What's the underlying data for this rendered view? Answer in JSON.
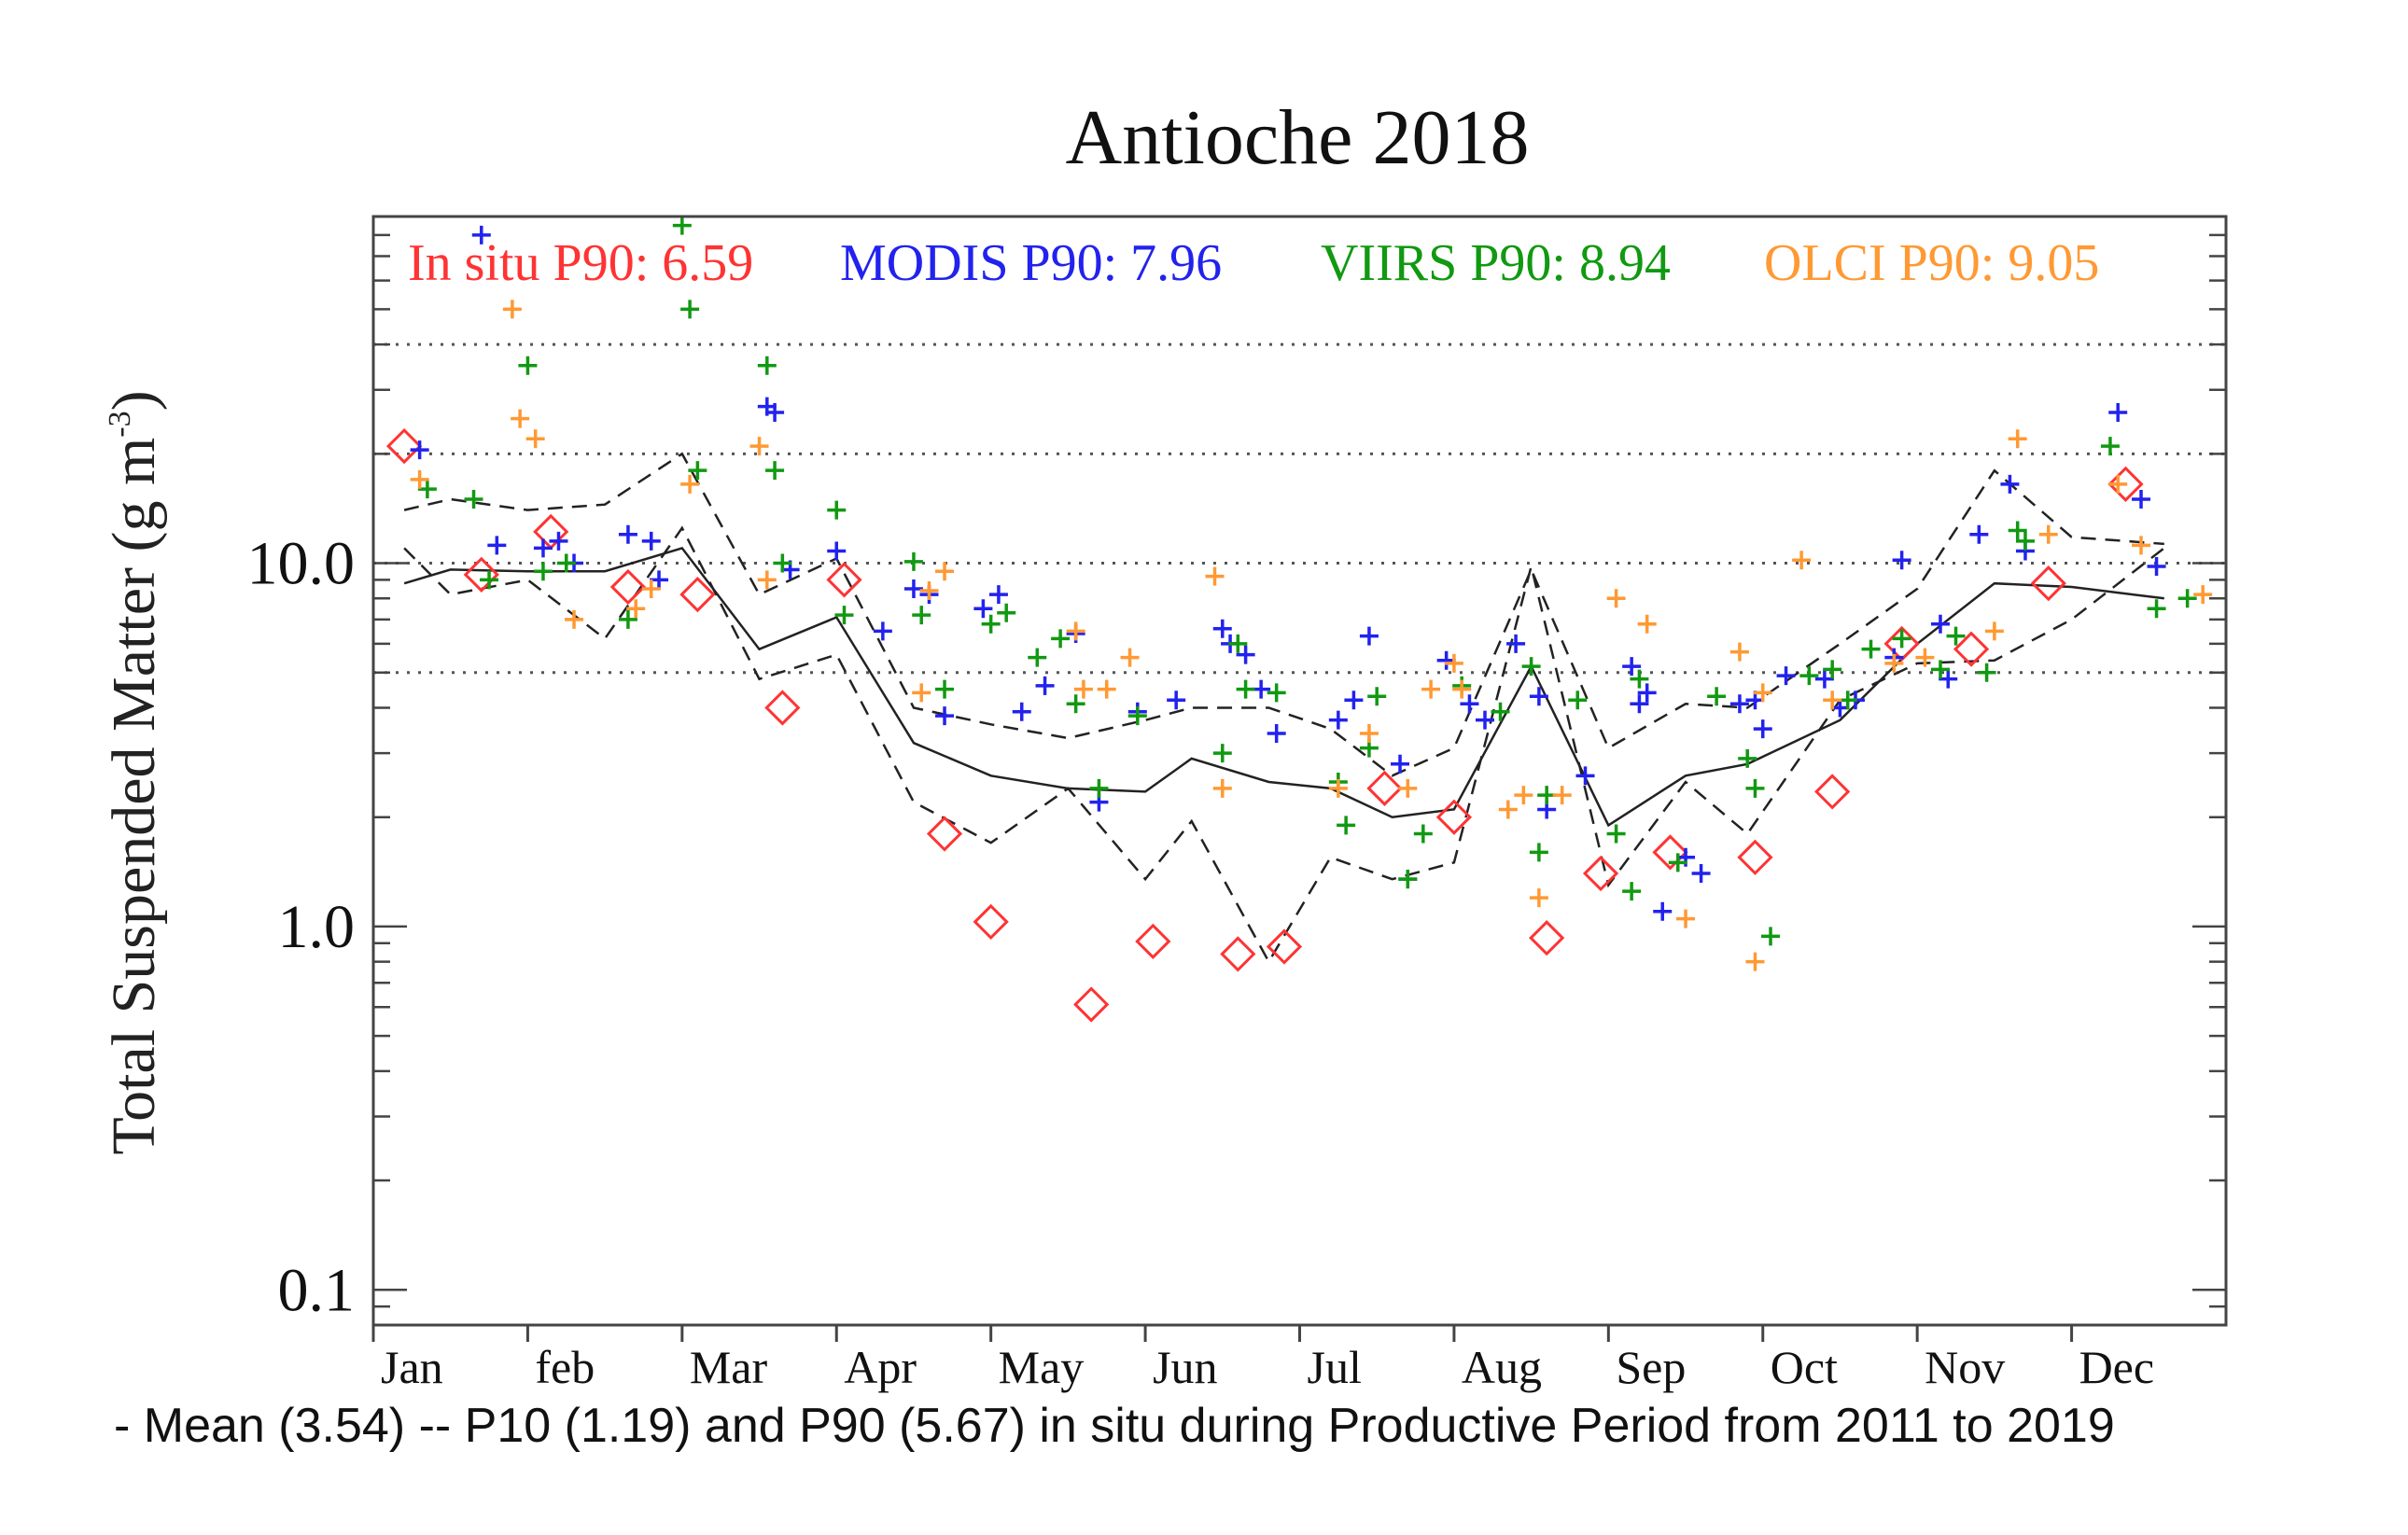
{
  "chart_data": {
    "type": "scatter",
    "title": "Antioche 2018",
    "ylabel": "Total Suspended Matter (g m",
    "ylabel_sup": "-3",
    "ylabel_close": ")",
    "xlabel": "",
    "y_scale": "log",
    "ylim": [
      0.08,
      90
    ],
    "xlim": [
      0,
      12
    ],
    "y_ticks": [
      {
        "value": 0.1,
        "label": "0.1"
      },
      {
        "value": 1.0,
        "label": "1.0"
      },
      {
        "value": 10.0,
        "label": "10.0"
      }
    ],
    "months": [
      "Jan",
      "feb",
      "Mar",
      "Apr",
      "May",
      "Jun",
      "Jul",
      "Aug",
      "Sep",
      "Oct",
      "Nov",
      "Dec"
    ],
    "ref_lines": [
      5,
      10,
      20,
      40
    ],
    "legend": [
      {
        "text": "In situ P90: 6.59",
        "color": "#ff3333"
      },
      {
        "text": "MODIS P90: 7.96",
        "color": "#2222ee"
      },
      {
        "text": "VIIRS P90: 8.94",
        "color": "#119911"
      },
      {
        "text": "OLCI P90: 9.05",
        "color": "#ff9933"
      }
    ],
    "footnote": "- Mean (3.54) -- P10 (1.19) and P90 (5.67) in situ during Productive Period from 2011 to 2019",
    "mean_line": {
      "x": [
        0.2,
        0.5,
        1.0,
        1.5,
        2.0,
        2.5,
        3.0,
        3.5,
        4.0,
        4.5,
        5.0,
        5.3,
        5.8,
        6.2,
        6.6,
        7.0,
        7.5,
        8.0,
        8.5,
        8.9,
        9.5,
        10.0,
        10.5,
        11.0,
        11.6
      ],
      "y": [
        8.8,
        9.6,
        9.5,
        9.5,
        11,
        5.8,
        7.1,
        3.2,
        2.6,
        2.4,
        2.35,
        2.9,
        2.5,
        2.4,
        2.0,
        2.1,
        5.2,
        1.9,
        2.6,
        2.8,
        3.7,
        6.0,
        8.8,
        8.6,
        8.0
      ]
    },
    "p90_line": {
      "x": [
        0.2,
        0.5,
        1.0,
        1.5,
        2.0,
        2.5,
        3.0,
        3.5,
        4.0,
        4.5,
        5.0,
        5.3,
        5.8,
        6.2,
        6.6,
        7.0,
        7.5,
        8.0,
        8.5,
        8.9,
        9.5,
        10.0,
        10.5,
        11.0,
        11.6
      ],
      "y": [
        14,
        15,
        14,
        14.5,
        20,
        8.2,
        10.3,
        4.0,
        3.6,
        3.3,
        3.7,
        4.0,
        4.0,
        3.5,
        2.6,
        3.1,
        9.6,
        3.1,
        4.1,
        4.0,
        6.0,
        8.5,
        18,
        11.8,
        11.3
      ]
    },
    "p10_line": {
      "x": [
        0.2,
        0.5,
        1.0,
        1.5,
        2.0,
        2.5,
        3.0,
        3.5,
        4.0,
        4.5,
        5.0,
        5.3,
        5.8,
        6.2,
        6.6,
        7.0,
        7.5,
        8.0,
        8.5,
        8.9,
        9.5,
        10.0,
        10.5,
        11.0,
        11.6
      ],
      "y": [
        11,
        8.2,
        9.0,
        6.2,
        12.5,
        4.8,
        5.6,
        2.2,
        1.7,
        2.4,
        1.35,
        1.95,
        0.8,
        1.55,
        1.35,
        1.5,
        9.8,
        1.3,
        2.5,
        1.8,
        4.2,
        5.3,
        5.4,
        7.0,
        11
      ]
    },
    "series": [
      {
        "name": "In situ",
        "marker": "diamond",
        "color": "#ff3333",
        "x": [
          0.2,
          0.7,
          1.15,
          1.65,
          2.1,
          2.65,
          3.05,
          3.7,
          4.0,
          4.65,
          5.05,
          5.6,
          5.9,
          6.55,
          7.0,
          7.6,
          7.95,
          8.4,
          8.95,
          9.45,
          9.9,
          10.35,
          10.85,
          11.35
        ],
        "y": [
          21,
          9.3,
          12.2,
          8.6,
          8.2,
          4.0,
          9.0,
          1.8,
          1.03,
          0.61,
          0.91,
          0.84,
          0.88,
          2.4,
          2.0,
          0.93,
          1.4,
          1.6,
          1.55,
          2.35,
          6.0,
          5.8,
          8.8,
          16.5
        ]
      },
      {
        "name": "MODIS",
        "marker": "plus",
        "color": "#2222ee",
        "x": [
          0.3,
          0.7,
          0.8,
          1.1,
          1.2,
          1.3,
          1.65,
          1.8,
          1.85,
          2.55,
          2.6,
          2.7,
          3.0,
          3.3,
          3.5,
          3.6,
          3.7,
          3.95,
          4.05,
          4.2,
          4.35,
          4.55,
          4.7,
          4.95,
          5.2,
          5.5,
          5.55,
          5.65,
          5.75,
          5.85,
          6.25,
          6.35,
          6.45,
          6.65,
          6.7,
          6.95,
          7.1,
          7.2,
          7.4,
          7.55,
          7.6,
          7.85,
          8.15,
          8.2,
          8.25,
          8.35,
          8.5,
          8.6,
          8.85,
          8.95,
          9.0,
          9.15,
          9.4,
          9.5,
          9.6,
          9.85,
          9.9,
          10.15,
          10.2,
          10.4,
          10.6,
          10.7,
          11.3,
          11.45,
          11.55
        ],
        "y": [
          20.5,
          80,
          11.2,
          11,
          11.5,
          10,
          12,
          11.5,
          9,
          27,
          26,
          9.6,
          10.8,
          6.5,
          8.5,
          8.2,
          3.8,
          7.5,
          8.2,
          3.9,
          4.6,
          6.4,
          2.2,
          3.9,
          4.2,
          6.6,
          6.0,
          5.6,
          4.5,
          3.4,
          3.7,
          4.2,
          6.3,
          2.8,
          1.35,
          5.4,
          4.1,
          3.7,
          6.0,
          4.3,
          2.1,
          2.6,
          5.2,
          4.1,
          4.4,
          1.1,
          1.55,
          1.4,
          4.1,
          4.2,
          3.5,
          4.9,
          4.8,
          4.0,
          4.2,
          5.5,
          10.2,
          6.8,
          4.8,
          12,
          16.5,
          10.8,
          26,
          15,
          9.8
        ]
      },
      {
        "name": "VIIRS",
        "marker": "plus",
        "color": "#119911",
        "x": [
          0.35,
          0.65,
          0.75,
          1.0,
          1.1,
          1.25,
          1.65,
          2.0,
          2.05,
          2.1,
          2.55,
          2.6,
          2.65,
          3.0,
          3.05,
          3.5,
          3.55,
          3.7,
          4.0,
          4.1,
          4.3,
          4.45,
          4.55,
          4.7,
          4.95,
          5.5,
          5.6,
          5.65,
          5.85,
          6.25,
          6.3,
          6.45,
          6.5,
          6.7,
          6.8,
          7.05,
          7.3,
          7.5,
          7.55,
          7.6,
          7.8,
          8.05,
          8.15,
          8.2,
          8.45,
          8.7,
          8.9,
          8.95,
          9.05,
          9.3,
          9.45,
          9.55,
          9.7,
          9.9,
          10.15,
          10.25,
          10.45,
          10.65,
          10.7,
          11.25,
          11.55,
          11.75
        ],
        "y": [
          16,
          15,
          9,
          35,
          9.5,
          10,
          7,
          85,
          50,
          18,
          35,
          18,
          10,
          14,
          7.2,
          10.1,
          7.2,
          4.5,
          6.8,
          7.3,
          5.5,
          6.2,
          4.1,
          2.4,
          3.8,
          3.0,
          6.0,
          4.5,
          4.4,
          2.5,
          1.9,
          3.1,
          4.3,
          1.35,
          1.8,
          4.6,
          3.9,
          5.2,
          1.6,
          2.3,
          4.2,
          1.8,
          1.25,
          4.8,
          1.5,
          4.3,
          2.9,
          2.4,
          0.94,
          4.9,
          5.1,
          4.2,
          5.8,
          6.2,
          5.1,
          6.3,
          5.0,
          12.3,
          11.5,
          21,
          7.5,
          8
        ]
      },
      {
        "name": "OLCI",
        "marker": "plus",
        "color": "#ff9933",
        "x": [
          0.3,
          0.9,
          0.95,
          1.05,
          1.3,
          1.7,
          1.8,
          2.05,
          2.5,
          2.55,
          3.55,
          3.6,
          3.7,
          4.55,
          4.6,
          4.75,
          4.9,
          5.45,
          5.5,
          6.25,
          6.45,
          6.7,
          6.85,
          7.0,
          7.05,
          7.35,
          7.45,
          7.55,
          7.7,
          8.05,
          8.25,
          8.5,
          8.85,
          8.95,
          9.0,
          9.25,
          9.45,
          9.85,
          10.05,
          10.5,
          10.65,
          10.85,
          11.3,
          11.45,
          11.85
        ],
        "y": [
          17,
          50,
          25,
          22,
          7,
          7.5,
          8.5,
          16.5,
          21,
          9,
          4.4,
          8.4,
          9.5,
          6.5,
          4.5,
          4.5,
          5.5,
          9.2,
          2.4,
          2.4,
          3.4,
          2.4,
          4.5,
          5.3,
          4.5,
          2.1,
          2.3,
          1.2,
          2.3,
          8,
          6.8,
          1.05,
          5.7,
          0.8,
          4.4,
          10.2,
          4.2,
          5.3,
          5.5,
          6.5,
          22,
          12,
          16.5,
          11.2,
          8.2
        ]
      }
    ]
  }
}
